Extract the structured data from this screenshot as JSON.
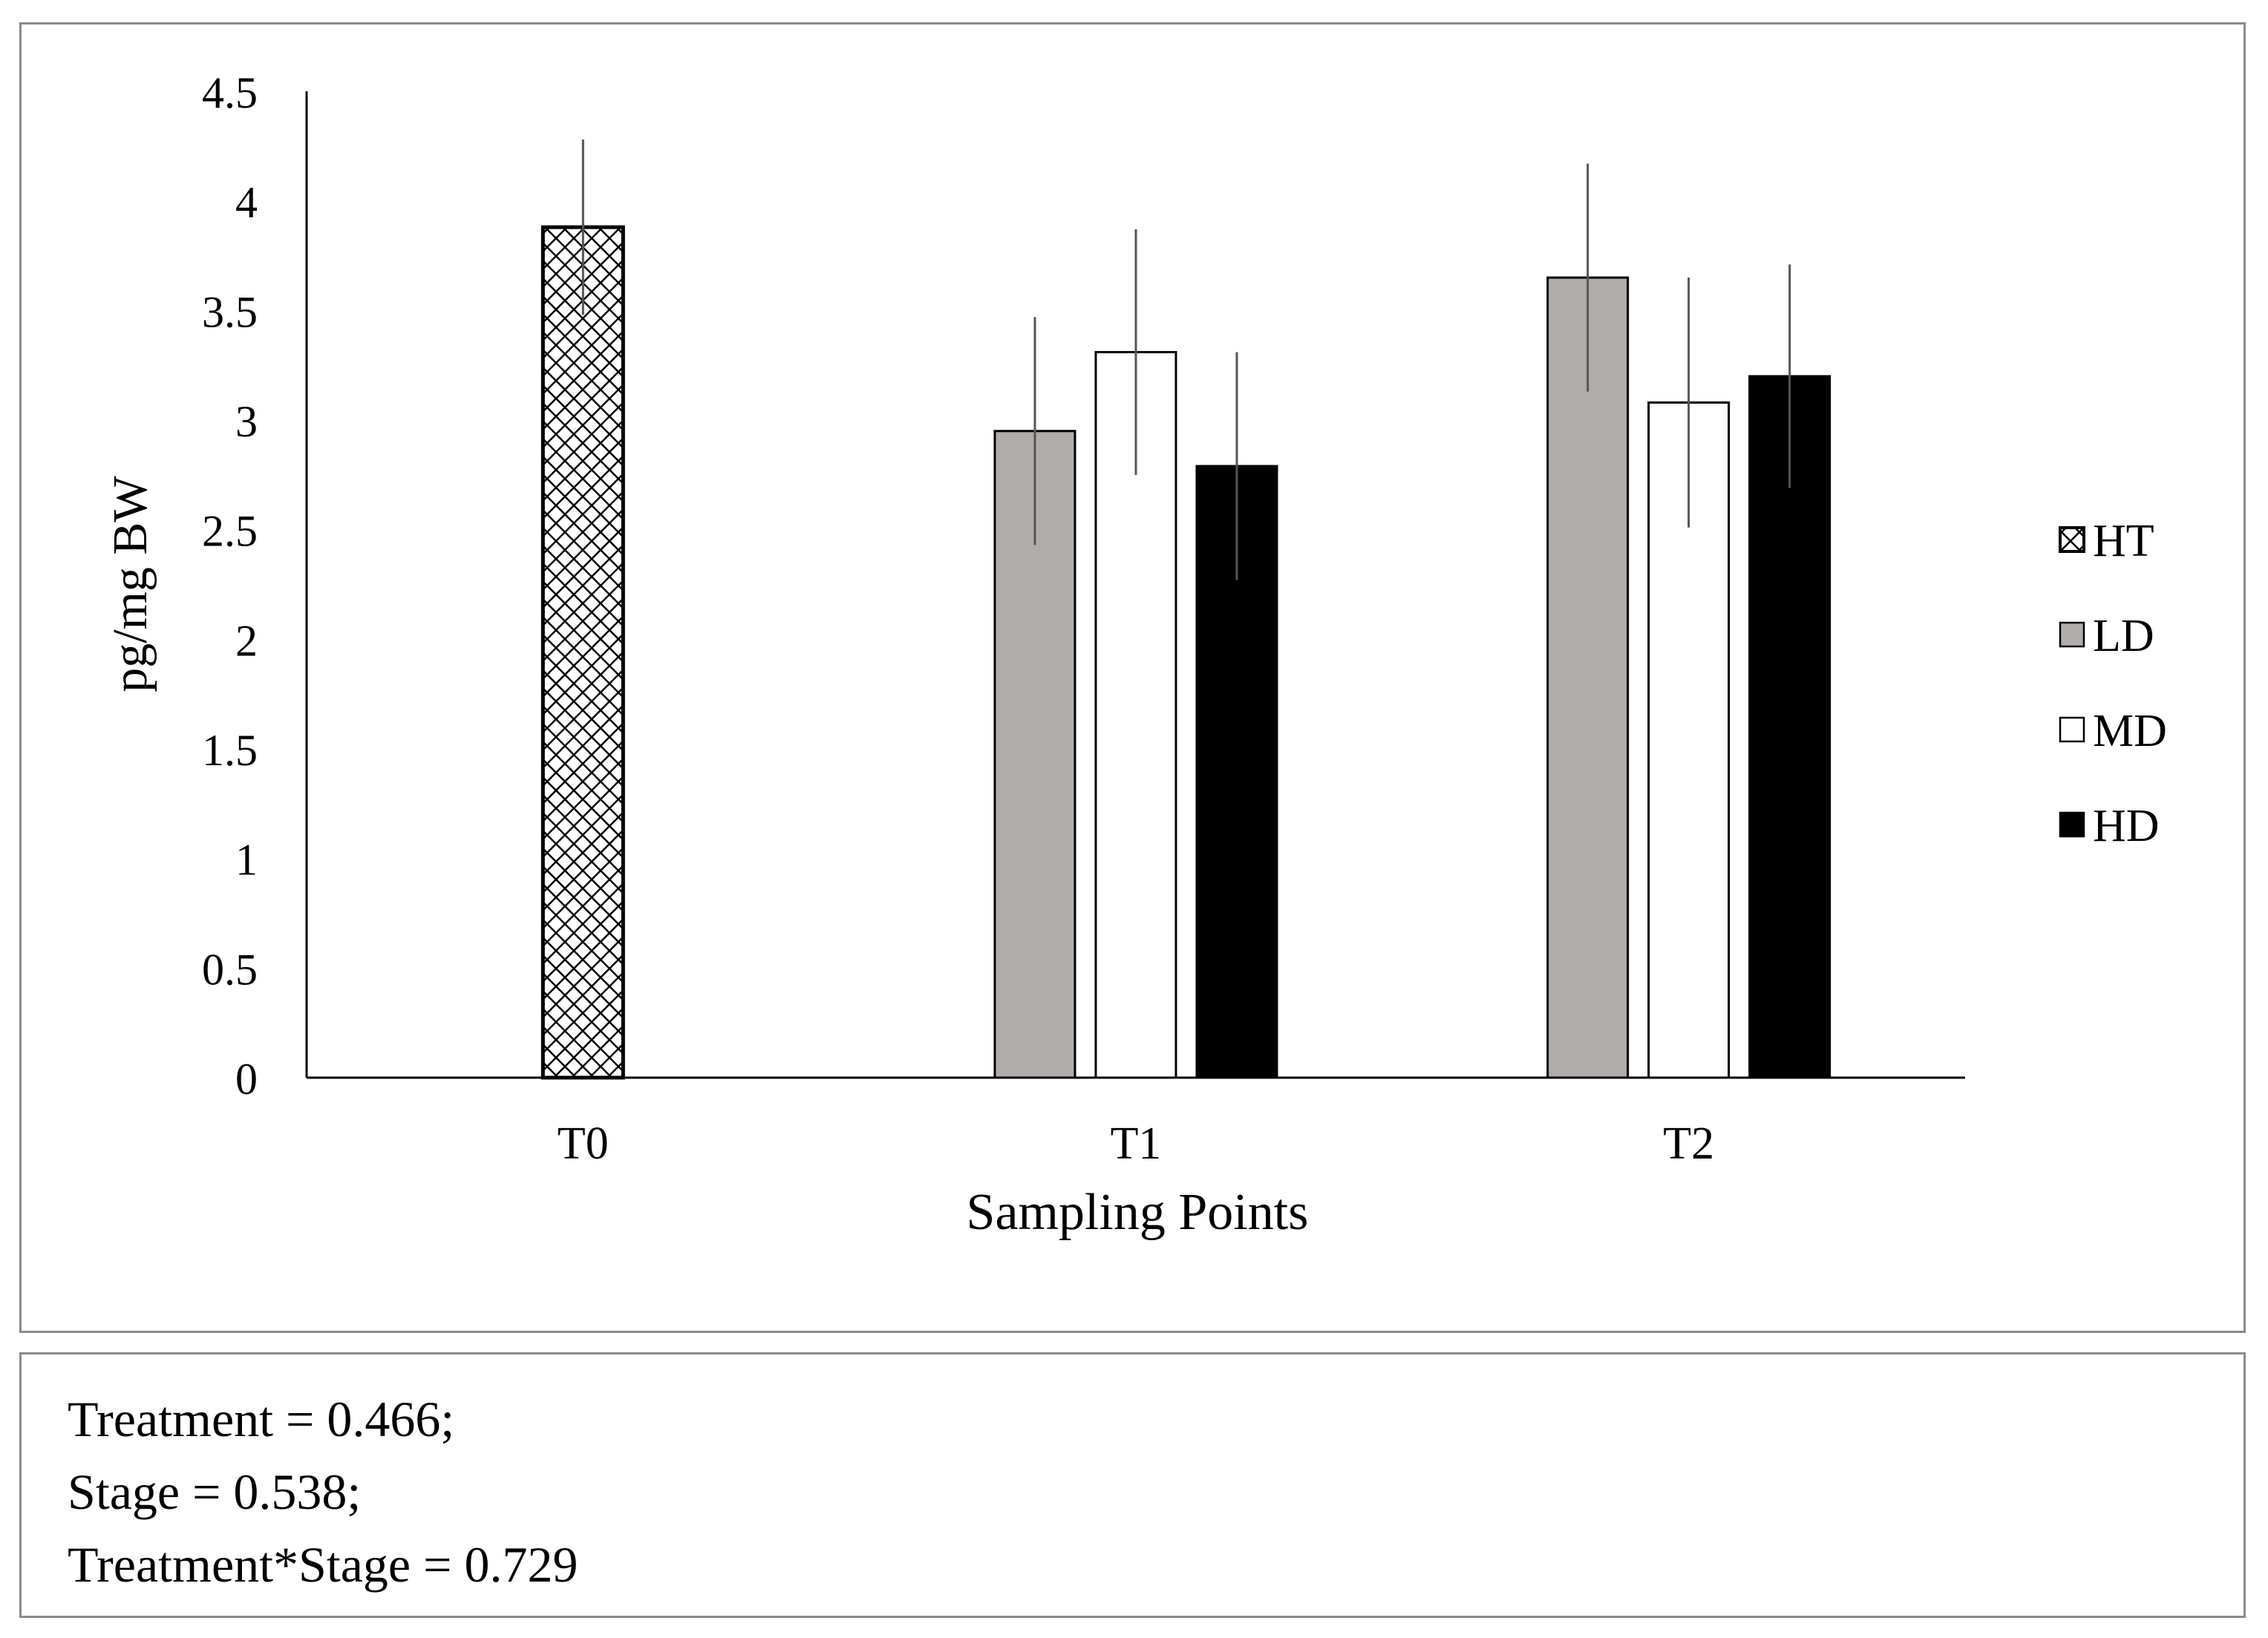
{
  "chart_data": {
    "type": "bar",
    "title": "",
    "xlabel": "Sampling Points",
    "ylabel": "pg/mg BW",
    "ylim": [
      0,
      4.5
    ],
    "yticks": [
      "0",
      "0.5",
      "1",
      "1.5",
      "2",
      "2.5",
      "3",
      "3.5",
      "4",
      "4.5"
    ],
    "categories": [
      "T0",
      "T1",
      "T2"
    ],
    "legend_position": "right",
    "series": [
      {
        "name": "HT",
        "fill": "pattern",
        "color": "#000000",
        "values": [
          3.88,
          null,
          null
        ],
        "errors": [
          0.4,
          null,
          null
        ]
      },
      {
        "name": "LD",
        "fill": "solid",
        "color": "#b0acab",
        "values": [
          null,
          2.95,
          3.65
        ],
        "errors": [
          null,
          0.52,
          0.52
        ]
      },
      {
        "name": "MD",
        "fill": "solid",
        "color": "#ffffff",
        "values": [
          null,
          3.31,
          3.08
        ],
        "errors": [
          null,
          0.56,
          0.57
        ]
      },
      {
        "name": "HD",
        "fill": "solid",
        "color": "#000000",
        "values": [
          null,
          2.79,
          3.2
        ],
        "errors": [
          null,
          0.52,
          0.51
        ]
      }
    ]
  },
  "stats": {
    "lines": [
      "Treatment = 0.466;",
      "Stage = 0.538;",
      "Treatment*Stage = 0.729"
    ]
  }
}
